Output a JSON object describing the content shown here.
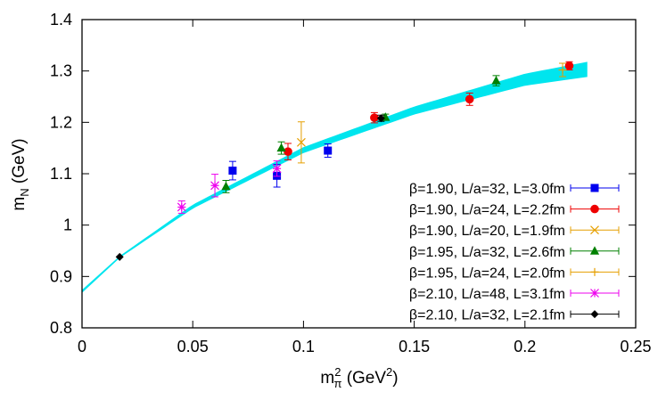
{
  "chart_data": {
    "type": "scatter",
    "title": "",
    "xlabel": {
      "base": "m",
      "sub": "π",
      "sup": "2",
      "unit_open": " (GeV",
      "unit_sup": "2",
      "unit_close": ")"
    },
    "ylabel": {
      "base": "m",
      "sub": "N",
      "unit": " (GeV)"
    },
    "xlim": [
      0,
      0.25
    ],
    "ylim": [
      0.8,
      1.4
    ],
    "xticks": [
      0,
      0.05,
      0.1,
      0.15,
      0.2,
      0.25
    ],
    "xtick_labels": [
      "0",
      "0.05",
      "0.1",
      "0.15",
      "0.2",
      "0.25"
    ],
    "yticks": [
      0.8,
      0.9,
      1.0,
      1.1,
      1.2,
      1.3,
      1.4
    ],
    "ytick_labels": [
      "0.8",
      "0.9",
      "1",
      "1.1",
      "1.2",
      "1.3",
      "1.4"
    ],
    "legend_position": "bottom-right",
    "fit_band": {
      "color": "#00e5ee",
      "x_start": 0,
      "x_end": 0.228,
      "center": {
        "x": [
          0,
          0.017,
          0.05,
          0.1,
          0.15,
          0.2,
          0.228
        ],
        "y": [
          0.871,
          0.938,
          1.036,
          1.146,
          1.223,
          1.283,
          1.303
        ]
      },
      "half_width": {
        "x": [
          0,
          0.017,
          0.05,
          0.1,
          0.15,
          0.2,
          0.228
        ],
        "y": [
          0.002,
          0.001,
          0.003,
          0.005,
          0.007,
          0.011,
          0.014
        ]
      }
    },
    "series": [
      {
        "name": "β=1.90, L/a=32, L=3.0fm",
        "marker": "square",
        "color": "#0000ee",
        "points": [
          {
            "x": 0.068,
            "y": 1.106,
            "err": 0.018
          },
          {
            "x": 0.088,
            "y": 1.096,
            "err": 0.022
          },
          {
            "x": 0.111,
            "y": 1.145,
            "err": 0.013
          }
        ]
      },
      {
        "name": "β=1.90, L/a=24, L=2.2fm",
        "marker": "circle",
        "color": "#ee0000",
        "points": [
          {
            "x": 0.093,
            "y": 1.143,
            "err": 0.016
          },
          {
            "x": 0.132,
            "y": 1.209,
            "err": 0.01
          },
          {
            "x": 0.175,
            "y": 1.245,
            "err": 0.012
          },
          {
            "x": 0.22,
            "y": 1.31,
            "err": 0.008
          }
        ]
      },
      {
        "name": "β=1.90, L/a=20, L=1.9fm",
        "marker": "cross",
        "color": "#e69f00",
        "points": [
          {
            "x": 0.099,
            "y": 1.161,
            "err": 0.04
          }
        ]
      },
      {
        "name": "β=1.95, L/a=32, L=2.6fm",
        "marker": "triangle",
        "color": "#008000",
        "points": [
          {
            "x": 0.065,
            "y": 1.075,
            "err": 0.012
          },
          {
            "x": 0.09,
            "y": 1.15,
            "err": 0.012
          },
          {
            "x": 0.137,
            "y": 1.21,
            "err": 0.006
          },
          {
            "x": 0.187,
            "y": 1.281,
            "err": 0.01
          }
        ]
      },
      {
        "name": "β=1.95, L/a=24, L=2.0fm",
        "marker": "plus",
        "color": "#e69f00",
        "points": [
          {
            "x": 0.217,
            "y": 1.302,
            "err": 0.013
          }
        ]
      },
      {
        "name": "β=2.10, L/a=48, L=3.1fm",
        "marker": "star",
        "color": "#ee00ee",
        "points": [
          {
            "x": 0.045,
            "y": 1.035,
            "err": 0.012
          },
          {
            "x": 0.06,
            "y": 1.077,
            "err": 0.022
          },
          {
            "x": 0.088,
            "y": 1.11,
            "err": 0.015
          }
        ]
      },
      {
        "name": "β=2.10, L/a=32, L=2.1fm",
        "marker": "diamond",
        "color": "#000000",
        "points": [
          {
            "x": 0.017,
            "y": 0.938,
            "err": 0.0
          },
          {
            "x": 0.135,
            "y": 1.208,
            "err": 0.006
          }
        ]
      }
    ]
  }
}
